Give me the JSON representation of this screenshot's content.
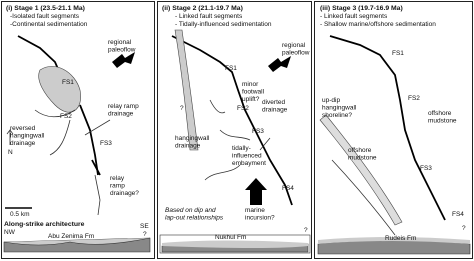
{
  "panels": [
    {
      "title": "(i) Stage 1 (23.5-21.1 Ma)",
      "notes": [
        "-Isolated fault segments",
        "-Continental sedimentation"
      ],
      "labels": {
        "paleoflow": [
          "regional",
          "paleoflow"
        ],
        "fs1": "FS1",
        "fs2": "FS2",
        "fs3": "FS3",
        "relay1": [
          "relay ramp",
          "drainage"
        ],
        "reversed": [
          "reversed",
          "hangingwall",
          "drainage"
        ],
        "relay2": [
          "relay",
          "ramp",
          "drainage?"
        ],
        "north": "N",
        "scale": "0.5 km"
      },
      "section": {
        "title": "Along-strike architecture",
        "left": "NW",
        "right": "SE",
        "formation": "Abu Zenima Fm",
        "query": "?"
      }
    },
    {
      "title": "(ii) Stage 2 (21.1-19.7 Ma)",
      "notes": [
        "- Linked fault segments",
        "- Tidally-influenced sedimentation"
      ],
      "labels": {
        "paleoflow": [
          "regional",
          "paleoflow"
        ],
        "fs1": "FS1",
        "uplift": [
          "minor",
          "footwall",
          "uplift?"
        ],
        "fs2": "FS2",
        "diverted": [
          "diverted",
          "drainage"
        ],
        "hangingwall": [
          "hangingwall",
          "drainage"
        ],
        "fs3": "FS3",
        "query": "?",
        "embayment": [
          "tidally-",
          "influenced",
          "embayment"
        ],
        "marine": [
          "marine",
          "incursion?"
        ],
        "fs4": "FS4"
      },
      "section": {
        "title": [
          "Based on dip and",
          "lap-out relationships"
        ],
        "formation": "Nukhul Fm",
        "query": "?"
      }
    },
    {
      "title": "(iii) Stage 3 (19.7-16.9 Ma)",
      "notes": [
        "- Linked fault segments",
        "- Shallow marine/offshore sedimentation"
      ],
      "labels": {
        "fs1": "FS1",
        "fs2": "FS2",
        "offshore1": [
          "offshore",
          "mudstone"
        ],
        "shoreline": [
          "up-dip",
          "hangingwall",
          "shoreline?"
        ],
        "offshore2": [
          "offshore",
          "mudstone"
        ],
        "fs3": "FS3",
        "fs4": "FS4"
      },
      "section": {
        "formation": "Rudeis Fm",
        "query": "?"
      }
    }
  ]
}
